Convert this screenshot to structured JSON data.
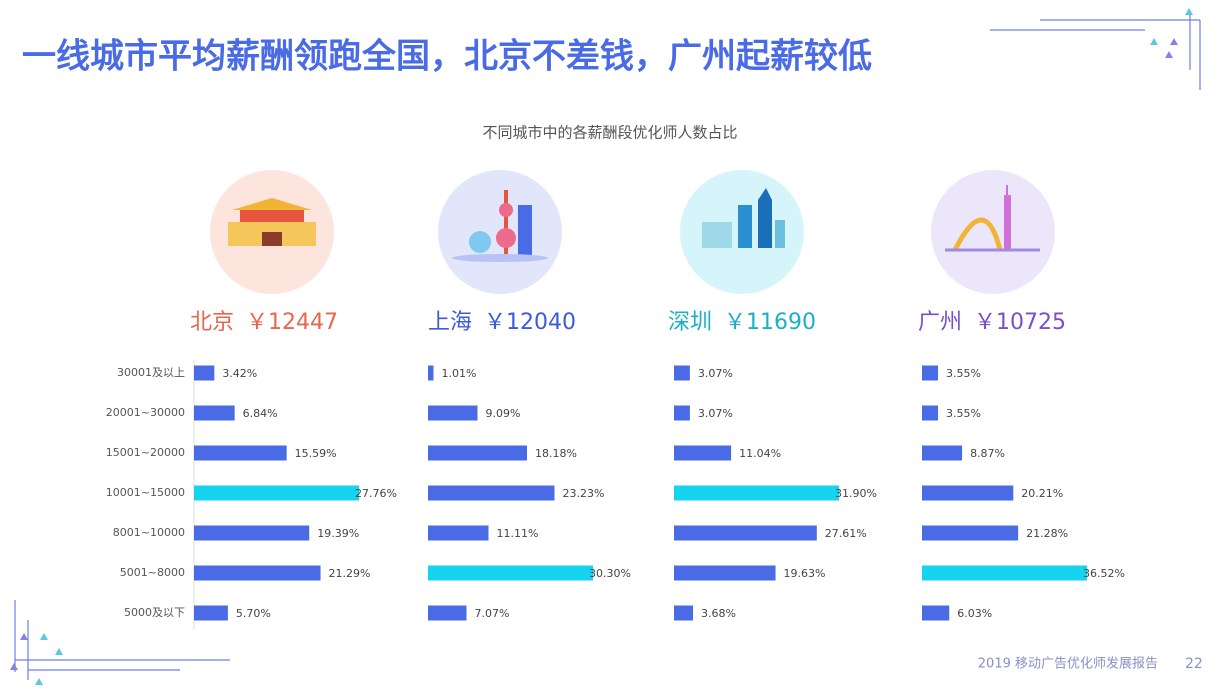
{
  "title": "一线城市平均薪酬领跑全国，北京不差钱，广州起薪较低",
  "footer": "2019 移动广告优化师发展报告",
  "page_number": "22",
  "chart_data": {
    "type": "bar",
    "orientation": "horizontal",
    "title": "不同城市中的各薪酬段优化师人数占比",
    "categories": [
      "30001及以上",
      "20001~30000",
      "15001~20000",
      "10001~15000",
      "8001~10000",
      "5001~8000",
      "5000及以下"
    ],
    "bar_color": "#4a6be6",
    "highlight_color": "#16d3f0",
    "series": [
      {
        "name": "北京",
        "salary": {
          "value": 12447,
          "label": "￥12447"
        },
        "color": "#e8654f",
        "values": [
          3.42,
          6.84,
          15.59,
          27.76,
          19.39,
          21.29,
          5.7
        ],
        "value_labels": [
          "3.42%",
          "6.84%",
          "15.59%",
          "27.76%",
          "19.39%",
          "21.29%",
          "5.70%"
        ]
      },
      {
        "name": "上海",
        "salary": {
          "value": 12040,
          "label": "￥12040"
        },
        "color": "#3b5bdb",
        "values": [
          1.01,
          9.09,
          18.18,
          23.23,
          11.11,
          30.3,
          7.07
        ],
        "value_labels": [
          "1.01%",
          "9.09%",
          "18.18%",
          "23.23%",
          "11.11%",
          "30.30%",
          "7.07%"
        ]
      },
      {
        "name": "深圳",
        "salary": {
          "value": 11690,
          "label": "￥11690"
        },
        "color": "#1bb0c6",
        "values": [
          3.07,
          3.07,
          11.04,
          31.9,
          27.61,
          19.63,
          3.68
        ],
        "value_labels": [
          "3.07%",
          "3.07%",
          "11.04%",
          "31.90%",
          "27.61%",
          "19.63%",
          "3.68%"
        ]
      },
      {
        "name": "广州",
        "salary": {
          "value": 10725,
          "label": "￥10725"
        },
        "color": "#7a4fc9",
        "values": [
          3.55,
          3.55,
          8.87,
          20.21,
          21.28,
          36.52,
          6.03
        ],
        "value_labels": [
          "3.55%",
          "3.55%",
          "8.87%",
          "20.21%",
          "21.28%",
          "36.52%",
          "6.03%"
        ]
      }
    ]
  }
}
